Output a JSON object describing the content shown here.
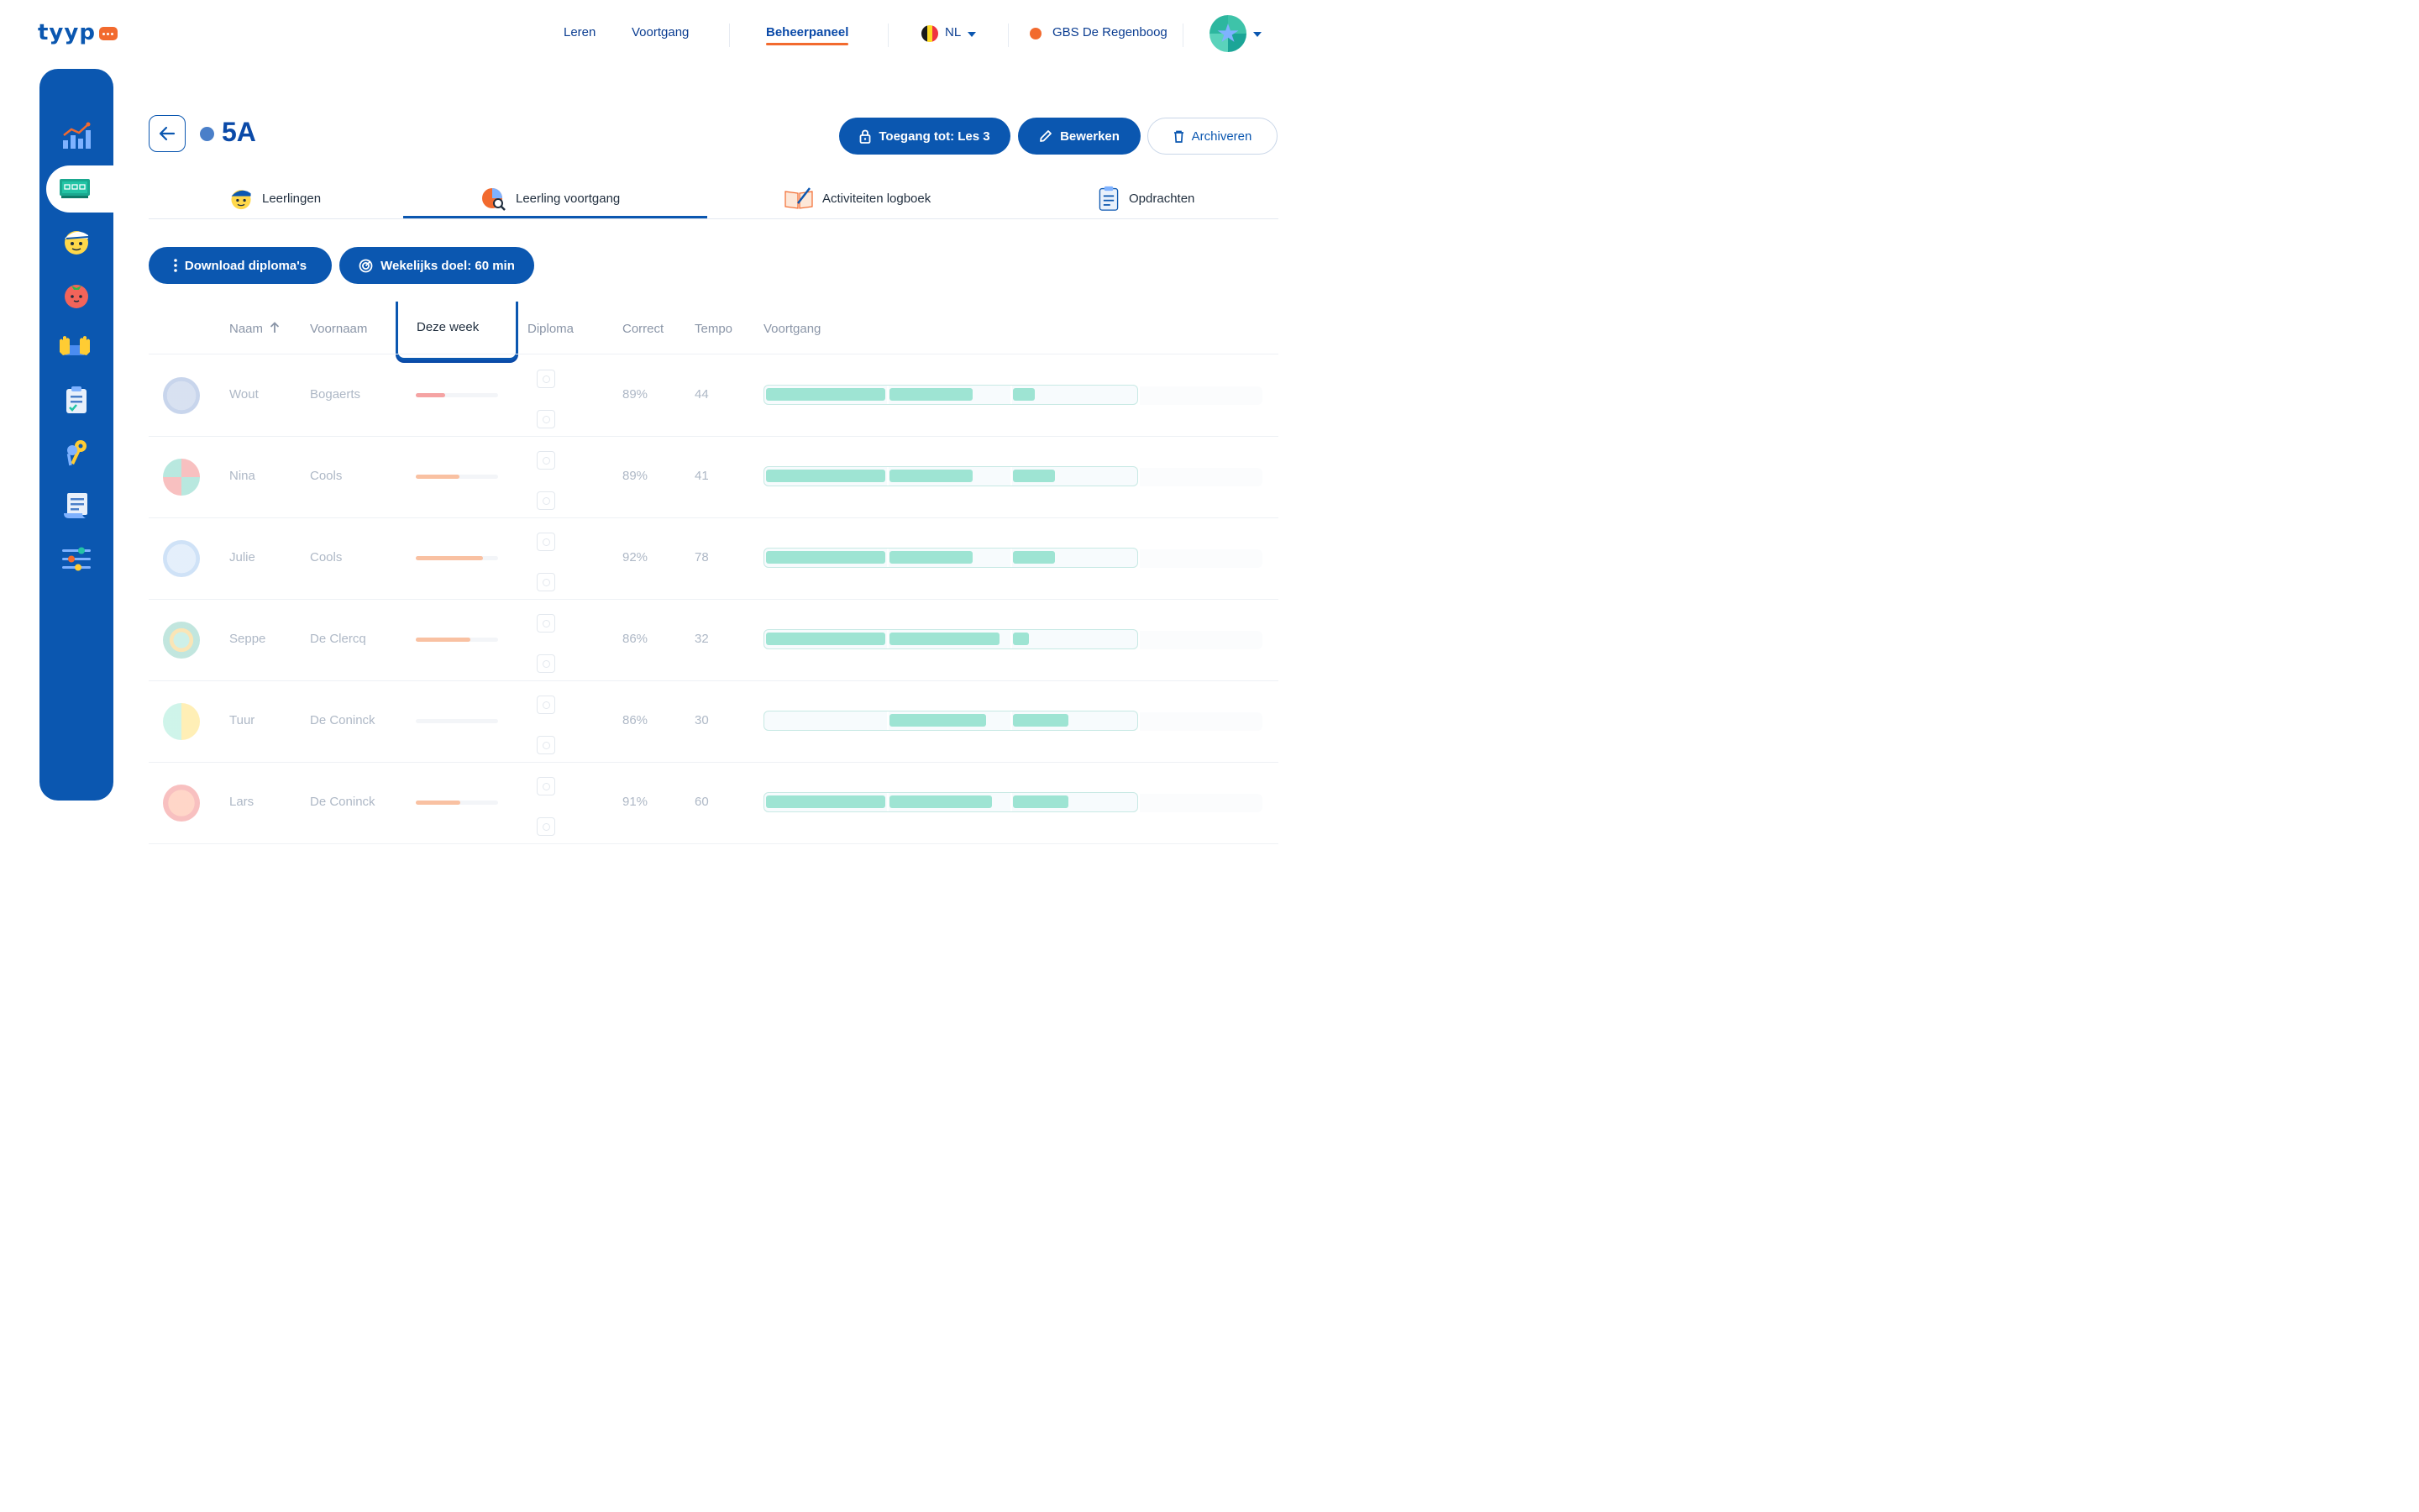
{
  "app": {
    "logo_text": "tyyp"
  },
  "topnav": {
    "links": [
      "Leren",
      "Voortgang",
      "Beheerpaneel"
    ],
    "active": "Beheerpaneel",
    "language": "NL",
    "school": "GBS De Regenboog"
  },
  "sidebar": {
    "items": [
      "chart-icon",
      "classroom-icon",
      "student-icon",
      "tomato-icon",
      "keyboard-hands-icon",
      "clipboard-icon",
      "keys-icon",
      "scroll-icon",
      "sliders-icon"
    ],
    "active_index": 1
  },
  "header": {
    "class_name": "5A",
    "class_color": "#4a7fc9",
    "buttons": {
      "access": "Toegang tot: Les 3",
      "edit": "Bewerken",
      "archive": "Archiveren"
    }
  },
  "tabs": [
    {
      "label": "Leerlingen",
      "icon": "student-icon"
    },
    {
      "label": "Leerling voortgang",
      "icon": "progress-chart-icon"
    },
    {
      "label": "Activiteiten logboek",
      "icon": "logbook-icon"
    },
    {
      "label": "Opdrachten",
      "icon": "assignment-icon"
    }
  ],
  "active_tab": "Leerling voortgang",
  "actions": {
    "download": "Download diploma's",
    "weekly_goal": "Wekelijks doel: 60 min"
  },
  "table": {
    "columns": {
      "naam": "Naam",
      "voornaam": "Voornaam",
      "deze_week": "Deze week",
      "diploma": "Diploma",
      "correct": "Correct",
      "tempo": "Tempo",
      "voortgang": "Voortgang"
    },
    "sort_column": "Naam",
    "sort_direction": "ascending",
    "rows": [
      {
        "naam": "Wout",
        "voornaam": "Bogaerts",
        "week_fraction": 0.36,
        "week_color": "#f5a3a3",
        "correct": "89%",
        "tempo": "44",
        "segments": [
          1.0,
          0.68,
          0.18
        ]
      },
      {
        "naam": "Nina",
        "voornaam": "Cools",
        "week_fraction": 0.53,
        "week_color": "#f9c1a2",
        "correct": "89%",
        "tempo": "41",
        "segments": [
          1.0,
          0.68,
          0.34
        ]
      },
      {
        "naam": "Julie",
        "voornaam": "Cools",
        "week_fraction": 0.82,
        "week_color": "#f9c1a2",
        "correct": "92%",
        "tempo": "78",
        "segments": [
          1.0,
          0.68,
          0.34
        ]
      },
      {
        "naam": "Seppe",
        "voornaam": "De Clercq",
        "week_fraction": 0.66,
        "week_color": "#f9c1a2",
        "correct": "86%",
        "tempo": "32",
        "segments": [
          1.0,
          0.9,
          0.13
        ]
      },
      {
        "naam": "Tuur",
        "voornaam": "De Coninck",
        "week_fraction": 0.0,
        "week_color": "#f9c1a2",
        "correct": "86%",
        "tempo": "30",
        "segments": [
          0.0,
          0.79,
          0.45
        ]
      },
      {
        "naam": "Lars",
        "voornaam": "De Coninck",
        "week_fraction": 0.54,
        "week_color": "#f9c1a2",
        "correct": "91%",
        "tempo": "60",
        "segments": [
          1.0,
          0.84,
          0.45
        ]
      }
    ]
  },
  "colors": {
    "brand": "#0b57b0",
    "accent": "#f26a2e",
    "progress": "#9ee4d3"
  }
}
